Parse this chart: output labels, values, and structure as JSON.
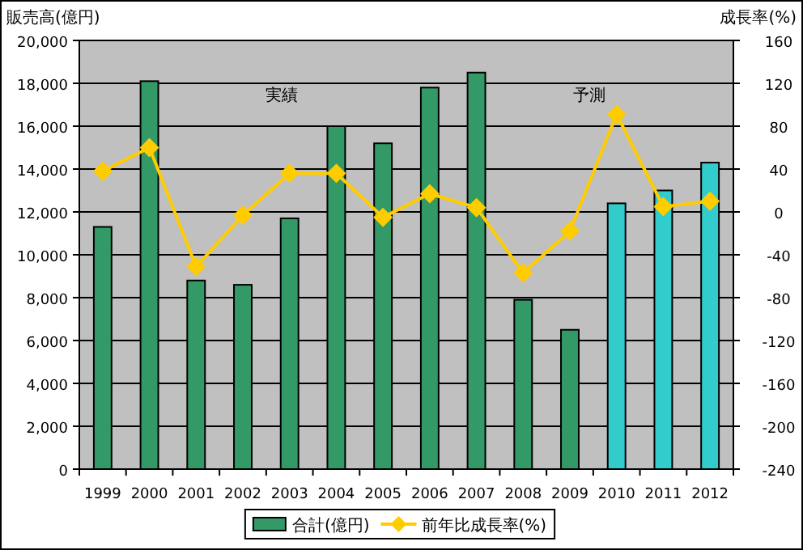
{
  "chart_data": {
    "type": "bar",
    "ylabel": "販売高(億円)",
    "y2label": "成長率(%)",
    "categories": [
      "1999",
      "2000",
      "2001",
      "2002",
      "2003",
      "2004",
      "2005",
      "2006",
      "2007",
      "2008",
      "2009",
      "2010",
      "2011",
      "2012"
    ],
    "series": [
      {
        "name": "合計(億円)",
        "color": "#339966",
        "colors": [
          "#339966",
          "#339966",
          "#339966",
          "#339966",
          "#339966",
          "#339966",
          "#339966",
          "#339966",
          "#339966",
          "#339966",
          "#339966",
          "#33cccc",
          "#33cccc",
          "#33cccc"
        ],
        "values": [
          11300,
          18100,
          8800,
          8600,
          11700,
          16000,
          15200,
          17800,
          18500,
          7900,
          6500,
          12400,
          13000,
          14300
        ]
      },
      {
        "name": "前年比成長率(%)",
        "type": "line",
        "axis": "y2",
        "color": "#ffcc00",
        "marker": "diamond",
        "values": [
          38,
          60,
          -51,
          -3,
          36,
          36,
          -5,
          17,
          4,
          -57,
          -18,
          91,
          5,
          10
        ]
      }
    ],
    "ylim": [
      0,
      20000
    ],
    "yticks": [
      0,
      {
        "value": 2000,
        "label": "2,000"
      },
      {
        "value": 4000,
        "label": "4,000"
      },
      {
        "value": 6000,
        "label": "6,000"
      },
      {
        "value": 8000,
        "label": "8,000"
      },
      {
        "value": 10000,
        "label": "10,000"
      },
      {
        "value": 12000,
        "label": "12,000"
      },
      {
        "value": 14000,
        "label": "14,000"
      },
      {
        "value": 16000,
        "label": "16,000"
      },
      {
        "value": 18000,
        "label": "18,000"
      },
      {
        "value": 20000,
        "label": "20,000"
      }
    ],
    "y2lim": [
      -240,
      160
    ],
    "y2ticks": [
      -240,
      -200,
      -160,
      -120,
      -80,
      -40,
      0,
      40,
      80,
      120,
      160
    ],
    "annotations": [
      "実績",
      "予測"
    ],
    "grid": "y",
    "legend": "bottom"
  }
}
